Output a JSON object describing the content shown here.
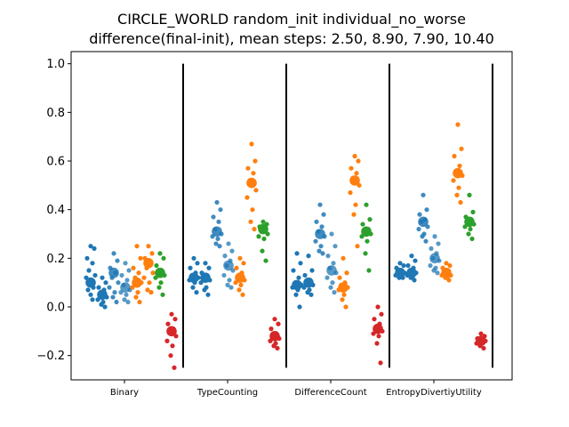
{
  "chart_data": {
    "type": "scatter",
    "title_line1": "CIRCLE_WORLD random_init individual_no_worse",
    "title_line2": "difference(final-init), mean steps: 2.50, 8.90, 7.90, 10.40",
    "xlabel": "",
    "ylabel": "",
    "ylim": [
      -0.3,
      1.05
    ],
    "y_ticks": [
      "−0.2",
      "0.0",
      "0.2",
      "0.4",
      "0.6",
      "0.8",
      "1.0"
    ],
    "y_tick_values": [
      -0.2,
      0.0,
      0.2,
      0.4,
      0.6,
      0.8,
      1.0
    ],
    "categories": [
      "Binary",
      "TypeCounting",
      "DifferenceCount",
      "EntropyDivertiyUtility"
    ],
    "separator_range": [
      -0.25,
      1.0
    ],
    "colors": {
      "blue": "#1f77b4",
      "orange": "#ff7f0e",
      "green": "#2ca02c",
      "red": "#d62728"
    },
    "groups": [
      {
        "category": "Binary",
        "series": [
          {
            "color": "blue",
            "alpha": 1.0,
            "mean": 0.1,
            "points": [
              0.25,
              0.24,
              0.2,
              0.18,
              0.15,
              0.13,
              0.12,
              0.1,
              0.09,
              0.08,
              0.07,
              0.05,
              0.03
            ]
          },
          {
            "color": "blue",
            "alpha": 1.0,
            "mean": 0.05,
            "points": [
              0.12,
              0.1,
              0.08,
              0.07,
              0.05,
              0.04,
              0.03,
              0.02,
              0.01,
              0.0
            ]
          },
          {
            "color": "blue",
            "alpha": 0.85,
            "mean": 0.14,
            "points": [
              0.22,
              0.19,
              0.16,
              0.14,
              0.12,
              0.1,
              0.08,
              0.06,
              0.04,
              0.02
            ]
          },
          {
            "color": "blue",
            "alpha": 0.75,
            "mean": 0.08,
            "points": [
              0.18,
              0.15,
              0.13,
              0.11,
              0.09,
              0.07,
              0.06,
              0.05,
              0.03,
              0.02
            ]
          },
          {
            "color": "orange",
            "alpha": 1.0,
            "mean": 0.1,
            "points": [
              0.25,
              0.2,
              0.16,
              0.14,
              0.12,
              0.1,
              0.08,
              0.06,
              0.04,
              0.02
            ]
          },
          {
            "color": "orange",
            "alpha": 1.0,
            "mean": 0.18,
            "points": [
              0.25,
              0.22,
              0.2,
              0.18,
              0.16,
              0.14,
              0.12,
              0.1,
              0.07,
              0.06
            ]
          },
          {
            "color": "green",
            "alpha": 1.0,
            "mean": 0.14,
            "points": [
              0.22,
              0.2,
              0.17,
              0.15,
              0.14,
              0.13,
              0.12,
              0.1,
              0.08,
              0.05
            ]
          },
          {
            "color": "red",
            "alpha": 1.0,
            "mean": -0.1,
            "points": [
              -0.03,
              -0.05,
              -0.07,
              -0.09,
              -0.1,
              -0.12,
              -0.14,
              -0.16,
              -0.2,
              -0.25
            ]
          }
        ]
      },
      {
        "category": "TypeCounting",
        "series": [
          {
            "color": "blue",
            "alpha": 1.0,
            "mean": 0.12,
            "points": [
              0.2,
              0.18,
              0.16,
              0.14,
              0.13,
              0.12,
              0.11,
              0.1,
              0.08,
              0.06
            ]
          },
          {
            "color": "blue",
            "alpha": 1.0,
            "mean": 0.12,
            "points": [
              0.18,
              0.16,
              0.14,
              0.13,
              0.12,
              0.11,
              0.1,
              0.08,
              0.07,
              0.05
            ]
          },
          {
            "color": "blue",
            "alpha": 0.85,
            "mean": 0.31,
            "points": [
              0.43,
              0.4,
              0.37,
              0.35,
              0.32,
              0.3,
              0.29,
              0.28,
              0.26,
              0.25
            ]
          },
          {
            "color": "blue",
            "alpha": 0.75,
            "mean": 0.17,
            "points": [
              0.26,
              0.23,
              0.21,
              0.19,
              0.17,
              0.15,
              0.13,
              0.11,
              0.09,
              0.08
            ]
          },
          {
            "color": "orange",
            "alpha": 1.0,
            "mean": 0.12,
            "points": [
              0.2,
              0.18,
              0.16,
              0.14,
              0.12,
              0.11,
              0.1,
              0.09,
              0.07,
              0.05
            ]
          },
          {
            "color": "orange",
            "alpha": 1.0,
            "mean": 0.51,
            "points": [
              0.67,
              0.6,
              0.57,
              0.55,
              0.52,
              0.48,
              0.45,
              0.4,
              0.35,
              0.32
            ]
          },
          {
            "color": "green",
            "alpha": 1.0,
            "mean": 0.32,
            "points": [
              0.35,
              0.34,
              0.33,
              0.32,
              0.31,
              0.3,
              0.29,
              0.28,
              0.23,
              0.19
            ]
          },
          {
            "color": "red",
            "alpha": 1.0,
            "mean": -0.12,
            "points": [
              -0.05,
              -0.07,
              -0.09,
              -0.11,
              -0.12,
              -0.13,
              -0.14,
              -0.15,
              -0.16,
              -0.17
            ]
          }
        ]
      },
      {
        "category": "DifferenceCount",
        "series": [
          {
            "color": "blue",
            "alpha": 1.0,
            "mean": 0.09,
            "points": [
              0.22,
              0.18,
              0.15,
              0.12,
              0.1,
              0.09,
              0.08,
              0.07,
              0.05,
              0.0
            ]
          },
          {
            "color": "blue",
            "alpha": 1.0,
            "mean": 0.1,
            "points": [
              0.21,
              0.15,
              0.13,
              0.11,
              0.1,
              0.09,
              0.08,
              0.07,
              0.06,
              0.05
            ]
          },
          {
            "color": "blue",
            "alpha": 0.85,
            "mean": 0.3,
            "points": [
              0.42,
              0.38,
              0.35,
              0.33,
              0.31,
              0.29,
              0.27,
              0.25,
              0.23,
              0.22
            ]
          },
          {
            "color": "blue",
            "alpha": 0.75,
            "mean": 0.15,
            "points": [
              0.3,
              0.25,
              0.21,
              0.18,
              0.16,
              0.14,
              0.12,
              0.1,
              0.08,
              0.06
            ]
          },
          {
            "color": "orange",
            "alpha": 1.0,
            "mean": 0.08,
            "points": [
              0.2,
              0.14,
              0.12,
              0.1,
              0.09,
              0.08,
              0.07,
              0.05,
              0.03,
              0.0
            ]
          },
          {
            "color": "orange",
            "alpha": 1.0,
            "mean": 0.52,
            "points": [
              0.62,
              0.6,
              0.57,
              0.55,
              0.53,
              0.5,
              0.47,
              0.42,
              0.38,
              0.25
            ]
          },
          {
            "color": "green",
            "alpha": 1.0,
            "mean": 0.31,
            "points": [
              0.42,
              0.36,
              0.34,
              0.32,
              0.31,
              0.3,
              0.29,
              0.27,
              0.22,
              0.15
            ]
          },
          {
            "color": "red",
            "alpha": 1.0,
            "mean": -0.09,
            "points": [
              0.0,
              -0.03,
              -0.05,
              -0.07,
              -0.09,
              -0.1,
              -0.11,
              -0.12,
              -0.15,
              -0.23
            ]
          }
        ]
      },
      {
        "category": "EntropyDivertiyUtility",
        "series": [
          {
            "color": "blue",
            "alpha": 1.0,
            "mean": 0.14,
            "points": [
              0.18,
              0.17,
              0.16,
              0.15,
              0.14,
              0.14,
              0.13,
              0.13,
              0.12,
              0.12
            ]
          },
          {
            "color": "blue",
            "alpha": 1.0,
            "mean": 0.14,
            "points": [
              0.21,
              0.19,
              0.17,
              0.16,
              0.15,
              0.14,
              0.13,
              0.12,
              0.12,
              0.11
            ]
          },
          {
            "color": "blue",
            "alpha": 0.85,
            "mean": 0.35,
            "points": [
              0.46,
              0.4,
              0.38,
              0.36,
              0.35,
              0.33,
              0.32,
              0.3,
              0.29,
              0.27
            ]
          },
          {
            "color": "blue",
            "alpha": 0.75,
            "mean": 0.2,
            "points": [
              0.29,
              0.26,
              0.24,
              0.22,
              0.2,
              0.19,
              0.17,
              0.16,
              0.15,
              0.14
            ]
          },
          {
            "color": "orange",
            "alpha": 1.0,
            "mean": 0.14,
            "points": [
              0.18,
              0.17,
              0.16,
              0.15,
              0.14,
              0.13,
              0.13,
              0.12,
              0.12,
              0.11
            ]
          },
          {
            "color": "orange",
            "alpha": 1.0,
            "mean": 0.55,
            "points": [
              0.75,
              0.65,
              0.62,
              0.58,
              0.56,
              0.54,
              0.52,
              0.49,
              0.46,
              0.43
            ]
          },
          {
            "color": "green",
            "alpha": 1.0,
            "mean": 0.35,
            "points": [
              0.46,
              0.39,
              0.37,
              0.36,
              0.35,
              0.34,
              0.33,
              0.32,
              0.3,
              0.28
            ]
          },
          {
            "color": "red",
            "alpha": 1.0,
            "mean": -0.14,
            "points": [
              -0.11,
              -0.12,
              -0.13,
              -0.13,
              -0.14,
              -0.14,
              -0.15,
              -0.15,
              -0.16,
              -0.17
            ]
          }
        ]
      }
    ]
  }
}
